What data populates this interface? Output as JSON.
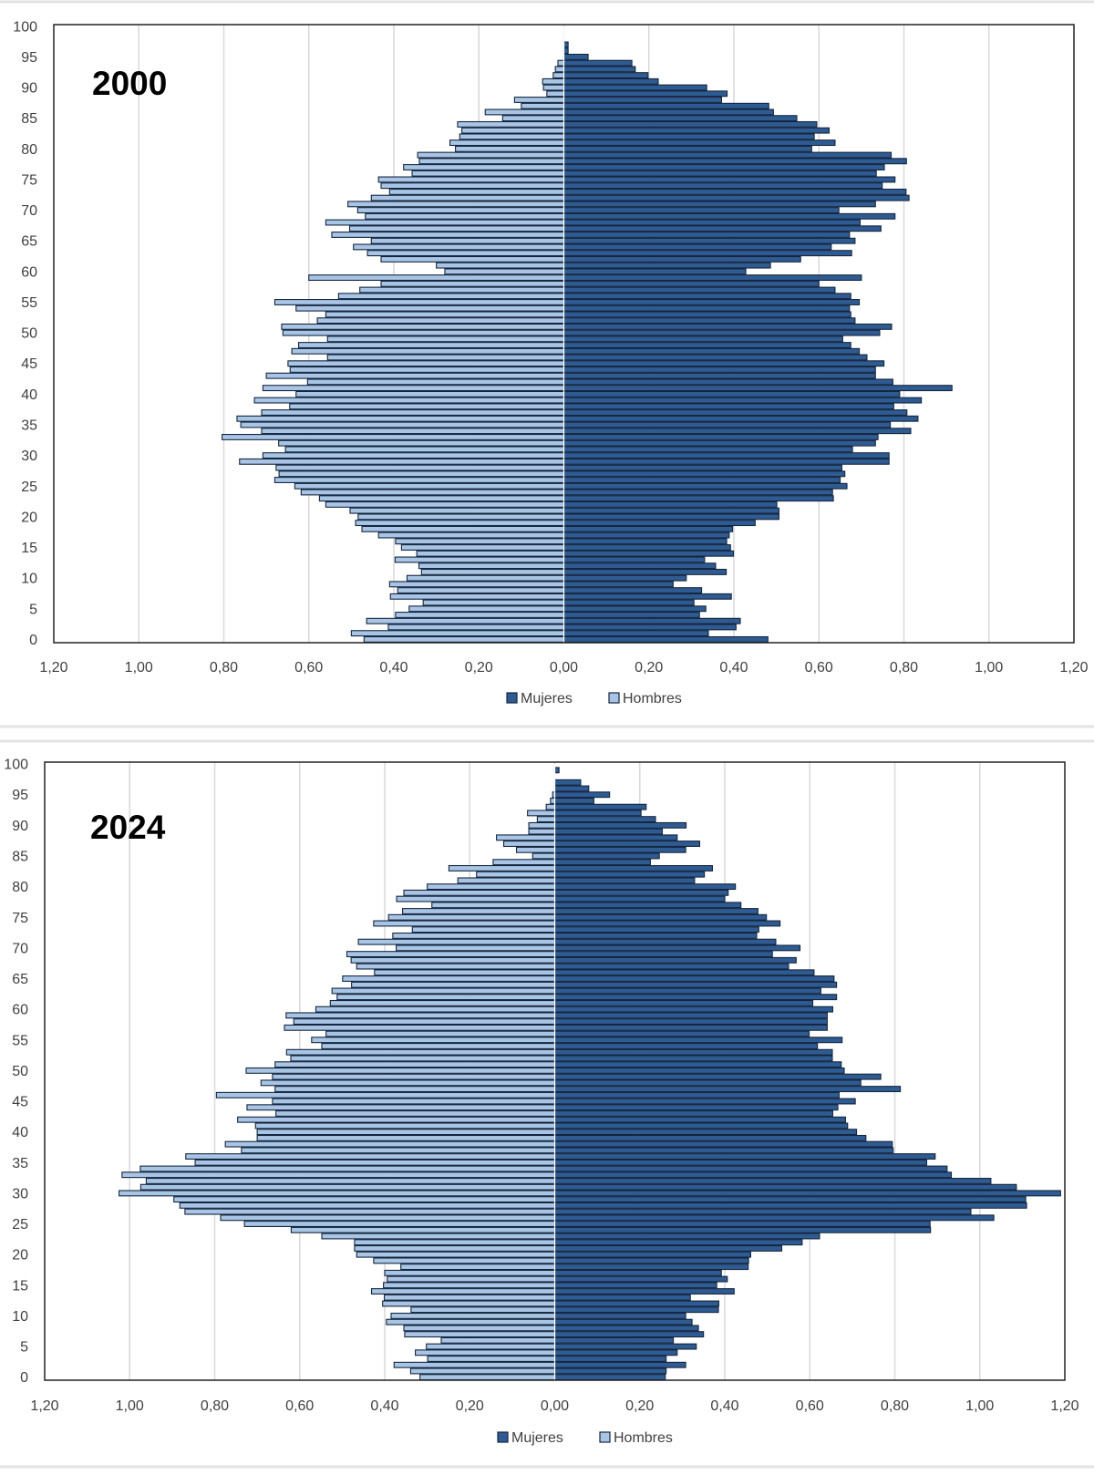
{
  "chart_data": [
    {
      "type": "bar",
      "orientation": "horizontal-pyramid",
      "title": "2000",
      "categories_label": "",
      "categories": "ages 0-100",
      "y_ticks": [
        "0",
        "5",
        "10",
        "15",
        "20",
        "25",
        "30",
        "35",
        "40",
        "45",
        "50",
        "55",
        "60",
        "65",
        "70",
        "75",
        "80",
        "85",
        "90",
        "95",
        "100"
      ],
      "x_ticks": [
        "1,20",
        "1,00",
        "0,80",
        "0,60",
        "0,40",
        "0,20",
        "0,00",
        "0,20",
        "0,40",
        "0,60",
        "0,80",
        "1,00",
        "1,20"
      ],
      "xlim": [
        -1.2,
        1.2
      ],
      "ylim": [
        0,
        100
      ],
      "grid": "vertical",
      "legend": "bottom",
      "series": [
        {
          "name": "Mujeres",
          "side": "right",
          "color": "#2f5b93",
          "values": [
            0.48,
            0.34,
            0.405,
            0.415,
            0.319,
            0.334,
            0.306,
            0.394,
            0.324,
            0.257,
            0.288,
            0.382,
            0.357,
            0.331,
            0.399,
            0.392,
            0.383,
            0.389,
            0.397,
            0.45,
            0.506,
            0.506,
            0.501,
            0.634,
            0.632,
            0.666,
            0.65,
            0.661,
            0.654,
            0.765,
            0.765,
            0.679,
            0.733,
            0.739,
            0.816,
            0.768,
            0.833,
            0.807,
            0.776,
            0.841,
            0.79,
            0.913,
            0.774,
            0.733,
            0.733,
            0.753,
            0.713,
            0.695,
            0.675,
            0.656,
            0.743,
            0.771,
            0.685,
            0.675,
            0.672,
            0.695,
            0.675,
            0.638,
            0.6,
            0.7,
            0.428,
            0.486,
            0.557,
            0.677,
            0.629,
            0.685,
            0.672,
            0.746,
            0.697,
            0.779,
            0.647,
            0.733,
            0.812,
            0.805,
            0.749,
            0.779,
            0.735,
            0.754,
            0.806,
            0.77,
            0.583,
            0.638,
            0.589,
            0.624,
            0.595,
            0.548,
            0.493,
            0.482,
            0.371,
            0.384,
            0.336,
            0.222,
            0.198,
            0.168,
            0.16,
            0.057,
            0.01,
            0.01,
            0,
            0,
            0
          ]
        },
        {
          "name": "Hombres",
          "side": "left",
          "color": "#a9c5e6",
          "values": [
            0.47,
            0.5,
            0.413,
            0.464,
            0.396,
            0.364,
            0.331,
            0.408,
            0.391,
            0.41,
            0.369,
            0.335,
            0.341,
            0.397,
            0.346,
            0.382,
            0.396,
            0.436,
            0.475,
            0.49,
            0.484,
            0.503,
            0.56,
            0.575,
            0.618,
            0.633,
            0.68,
            0.67,
            0.677,
            0.763,
            0.708,
            0.655,
            0.671,
            0.804,
            0.711,
            0.76,
            0.769,
            0.711,
            0.645,
            0.728,
            0.63,
            0.708,
            0.603,
            0.7,
            0.644,
            0.649,
            0.556,
            0.64,
            0.624,
            0.556,
            0.661,
            0.664,
            0.58,
            0.56,
            0.63,
            0.68,
            0.53,
            0.48,
            0.43,
            0.6,
            0.28,
            0.3,
            0.43,
            0.462,
            0.495,
            0.453,
            0.546,
            0.504,
            0.56,
            0.467,
            0.485,
            0.508,
            0.453,
            0.41,
            0.43,
            0.436,
            0.357,
            0.377,
            0.34,
            0.344,
            0.255,
            0.268,
            0.245,
            0.24,
            0.25,
            0.144,
            0.185,
            0.1,
            0.116,
            0.04,
            0.048,
            0.05,
            0.025,
            0.02,
            0.014,
            0,
            0,
            0,
            0,
            0,
            0
          ]
        }
      ]
    },
    {
      "type": "bar",
      "orientation": "horizontal-pyramid",
      "title": "2024",
      "categories": "ages 0-100",
      "y_ticks": [
        "0",
        "5",
        "10",
        "15",
        "20",
        "25",
        "30",
        "35",
        "40",
        "45",
        "50",
        "55",
        "60",
        "65",
        "70",
        "75",
        "80",
        "85",
        "90",
        "95",
        "100"
      ],
      "x_ticks": [
        "1,20",
        "1,00",
        "0,80",
        "0,60",
        "0,40",
        "0,20",
        "0,00",
        "0,20",
        "0,40",
        "0,60",
        "0,80",
        "1,00",
        "1,20"
      ],
      "xlim": [
        -1.2,
        1.2
      ],
      "ylim": [
        0,
        100
      ],
      "grid": "vertical",
      "legend": "bottom",
      "series": [
        {
          "name": "Mujeres",
          "side": "right",
          "color": "#2f5b93",
          "values": [
            0.26,
            0.262,
            0.308,
            0.262,
            0.288,
            0.333,
            0.279,
            0.35,
            0.338,
            0.323,
            0.308,
            0.385,
            0.386,
            0.319,
            0.422,
            0.381,
            0.406,
            0.392,
            0.455,
            0.456,
            0.461,
            0.534,
            0.582,
            0.623,
            0.884,
            0.883,
            1.033,
            0.979,
            1.11,
            1.108,
            1.19,
            1.086,
            1.026,
            0.933,
            0.923,
            0.875,
            0.895,
            0.796,
            0.794,
            0.732,
            0.71,
            0.689,
            0.684,
            0.654,
            0.666,
            0.707,
            0.669,
            0.813,
            0.72,
            0.767,
            0.681,
            0.674,
            0.653,
            0.653,
            0.618,
            0.676,
            0.598,
            0.641,
            0.641,
            0.641,
            0.654,
            0.607,
            0.663,
            0.626,
            0.663,
            0.657,
            0.61,
            0.55,
            0.568,
            0.512,
            0.577,
            0.52,
            0.475,
            0.48,
            0.53,
            0.498,
            0.478,
            0.438,
            0.4,
            0.408,
            0.425,
            0.329,
            0.352,
            0.371,
            0.225,
            0.246,
            0.308,
            0.341,
            0.288,
            0.253,
            0.309,
            0.237,
            0.203,
            0.215,
            0.092,
            0.129,
            0.08,
            0.061,
            0,
            0.01,
            0
          ]
        },
        {
          "name": "Hombres",
          "side": "left",
          "color": "#a9c5e6",
          "values": [
            0.317,
            0.339,
            0.378,
            0.299,
            0.328,
            0.302,
            0.267,
            0.353,
            0.355,
            0.396,
            0.385,
            0.338,
            0.405,
            0.401,
            0.431,
            0.403,
            0.394,
            0.4,
            0.362,
            0.426,
            0.466,
            0.471,
            0.471,
            0.548,
            0.62,
            0.73,
            0.786,
            0.87,
            0.882,
            0.896,
            1.025,
            0.974,
            0.961,
            1.018,
            0.975,
            0.846,
            0.868,
            0.737,
            0.775,
            0.7,
            0.7,
            0.704,
            0.746,
            0.656,
            0.724,
            0.664,
            0.796,
            0.658,
            0.691,
            0.664,
            0.726,
            0.658,
            0.621,
            0.631,
            0.548,
            0.572,
            0.538,
            0.636,
            0.614,
            0.632,
            0.562,
            0.528,
            0.512,
            0.524,
            0.478,
            0.499,
            0.424,
            0.466,
            0.479,
            0.489,
            0.373,
            0.462,
            0.381,
            0.335,
            0.426,
            0.391,
            0.358,
            0.289,
            0.372,
            0.355,
            0.3,
            0.228,
            0.184,
            0.249,
            0.145,
            0.052,
            0.09,
            0.12,
            0.137,
            0.061,
            0.061,
            0.041,
            0.064,
            0.02,
            0.01,
            0.005,
            0,
            0,
            0,
            0,
            0
          ]
        }
      ]
    }
  ]
}
